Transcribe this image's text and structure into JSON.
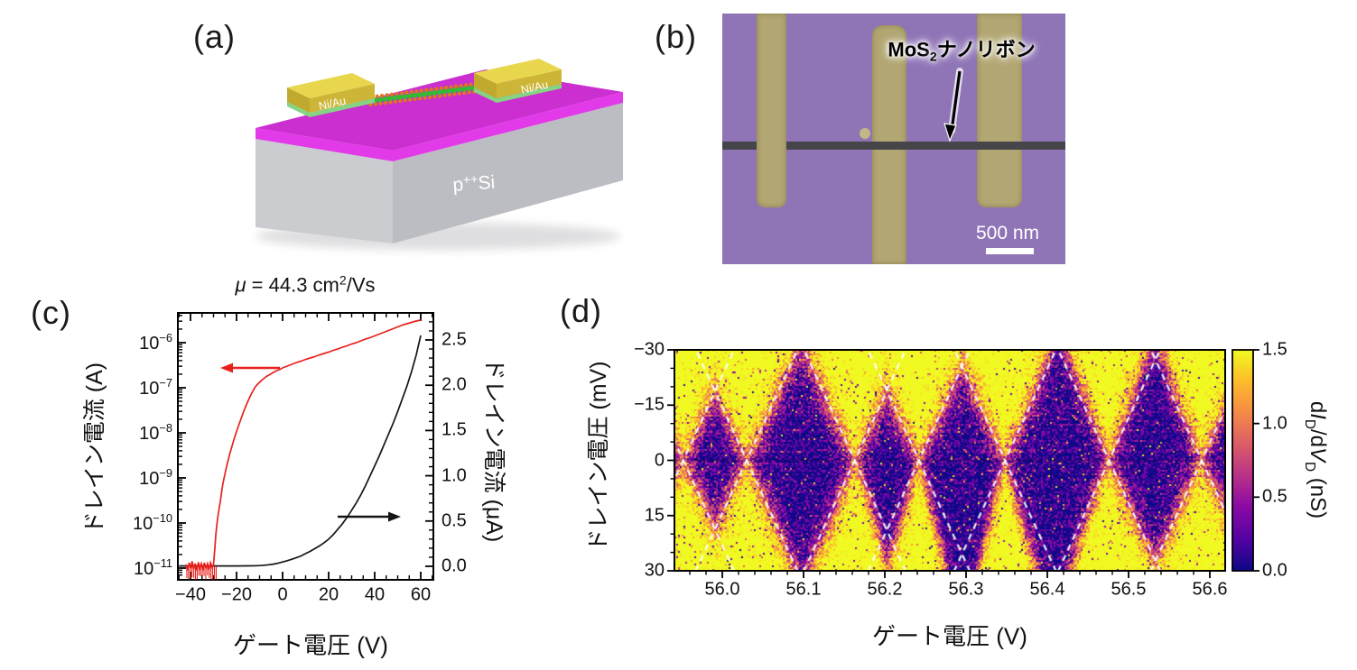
{
  "figure": {
    "background": "#ffffff",
    "panels": {
      "a": {
        "label": "(a)",
        "electrode_label": "Ni/Au",
        "substrate_label_base": "p",
        "substrate_label_sup": "++",
        "substrate_label_end": "Si",
        "colors": {
          "oxide_top": "#cb2fd0",
          "oxide_front": "#e23ae8",
          "substrate_front": "#cbccd0",
          "substrate_side": "#bcbdc2",
          "gold_top": "#e8d74d",
          "gold_front": "#cdb637",
          "gold_side": "#c0a92e",
          "adhesion_green": "#85d383",
          "atom_orange": "#e0761c",
          "atom_green": "#2fbe2f",
          "shadow": "#dedee0",
          "label_text": "#ffffff"
        }
      },
      "b": {
        "label": "(b)",
        "annotation_base": "MoS",
        "annotation_sub": "2",
        "annotation_rest": "ナノリボン",
        "scalebar_label": "500 nm",
        "colors": {
          "background": "#8f74b6",
          "electrode": "#b2a672",
          "particle": "#c3b786",
          "ribbon": "#45454a",
          "scalebar": "#ffffff"
        }
      },
      "c": {
        "label": "(c)"
      },
      "d": {
        "label": "(d)"
      }
    }
  },
  "chart_data": [
    {
      "id": "transfer-curve",
      "type": "line",
      "title_mu": "μ",
      "title_rest": " = 44.3 cm",
      "title_sup": "2",
      "title_end": "/Vs",
      "xlabel": "ゲート電圧 (V)",
      "ylabel_left": "ドレイン電流 (A)",
      "ylabel_right": "ドレイン電流 (μA)",
      "xlim": [
        -45.5,
        65.5
      ],
      "x_ticks": [
        -40,
        -20,
        0,
        20,
        40,
        60
      ],
      "x_tick_labels": [
        "−40",
        "−20",
        "0",
        "20",
        "40",
        "60"
      ],
      "x_minor_step": 5,
      "y_left_scale": "log",
      "y_left_lim_exponents": [
        -11.26,
        -5.34
      ],
      "y_left_tick_exponents": [
        -6,
        -7,
        -8,
        -9,
        -10,
        -11
      ],
      "y_left_tick_exponent_labels": [
        "−6",
        "−7",
        "−8",
        "−9",
        "−10",
        "−11"
      ],
      "y_left_tick_base": "10",
      "y_right_lim": [
        -0.15,
        2.8
      ],
      "y_right_ticks": [
        0.0,
        0.5,
        1.0,
        1.5,
        2.0,
        2.5
      ],
      "y_right_tick_labels": [
        "0.0",
        "0.5",
        "1.0",
        "1.5",
        "2.0",
        "2.5"
      ],
      "y_right_minor_step": 0.1,
      "grid": false,
      "noise_floor": {
        "vg_range": [
          -42,
          -29
        ],
        "exponent": -10.95
      },
      "series": [
        {
          "name": "drain-current-log-A",
          "color": "#e8211d",
          "axis": "left",
          "points": [
            [
              -42,
              -10.92
            ],
            [
              -41.3,
              -11.05
            ],
            [
              -40.6,
              -10.88
            ],
            [
              -40,
              -11.0
            ],
            [
              -39.3,
              -10.85
            ],
            [
              -38.6,
              -11.02
            ],
            [
              -38,
              -10.9
            ],
            [
              -37.3,
              -11.05
            ],
            [
              -36.6,
              -10.87
            ],
            [
              -36,
              -11.0
            ],
            [
              -35.3,
              -10.9
            ],
            [
              -34.6,
              -11.05
            ],
            [
              -34,
              -10.88
            ],
            [
              -33.3,
              -11.0
            ],
            [
              -32.6,
              -10.9
            ],
            [
              -32,
              -11.03
            ],
            [
              -31.3,
              -10.88
            ],
            [
              -30.6,
              -10.98
            ],
            [
              -30,
              -10.92
            ],
            [
              -29.5,
              -10.6
            ],
            [
              -29,
              -10.25
            ],
            [
              -28.5,
              -10.02
            ],
            [
              -28,
              -9.82
            ],
            [
              -27.5,
              -9.65
            ],
            [
              -27,
              -9.5
            ],
            [
              -26.5,
              -9.32
            ],
            [
              -26,
              -9.15
            ],
            [
              -25.5,
              -9.02
            ],
            [
              -25,
              -8.9
            ],
            [
              -24.5,
              -8.79
            ],
            [
              -24,
              -8.68
            ],
            [
              -23,
              -8.48
            ],
            [
              -22,
              -8.3
            ],
            [
              -21,
              -8.13
            ],
            [
              -20,
              -7.97
            ],
            [
              -19,
              -7.82
            ],
            [
              -18,
              -7.68
            ],
            [
              -17,
              -7.54
            ],
            [
              -16,
              -7.41
            ],
            [
              -15,
              -7.29
            ],
            [
              -14,
              -7.18
            ],
            [
              -13,
              -7.08
            ],
            [
              -12,
              -6.99
            ],
            [
              -11,
              -6.93
            ],
            [
              -10,
              -6.88
            ],
            [
              -9,
              -6.83
            ],
            [
              -8,
              -6.79
            ],
            [
              -7,
              -6.75
            ],
            [
              -6,
              -6.72
            ],
            [
              -5,
              -6.69
            ],
            [
              -4,
              -6.66
            ],
            [
              -3,
              -6.63
            ],
            [
              -2,
              -6.61
            ],
            [
              -1,
              -6.59
            ],
            [
              0,
              -6.56
            ],
            [
              2,
              -6.52
            ],
            [
              4,
              -6.48
            ],
            [
              6,
              -6.44
            ],
            [
              8,
              -6.41
            ],
            [
              10,
              -6.37
            ],
            [
              12,
              -6.34
            ],
            [
              14,
              -6.31
            ],
            [
              16,
              -6.27
            ],
            [
              18,
              -6.24
            ],
            [
              20,
              -6.21
            ],
            [
              22,
              -6.17
            ],
            [
              24,
              -6.14
            ],
            [
              26,
              -6.1
            ],
            [
              28,
              -6.07
            ],
            [
              30,
              -6.03
            ],
            [
              32,
              -6.0
            ],
            [
              34,
              -5.96
            ],
            [
              36,
              -5.92
            ],
            [
              38,
              -5.89
            ],
            [
              40,
              -5.85
            ],
            [
              42,
              -5.81
            ],
            [
              44,
              -5.77
            ],
            [
              46,
              -5.73
            ],
            [
              48,
              -5.69
            ],
            [
              50,
              -5.65
            ],
            [
              52,
              -5.61
            ],
            [
              54,
              -5.58
            ],
            [
              56,
              -5.55
            ],
            [
              58,
              -5.52
            ],
            [
              60,
              -5.5
            ]
          ]
        },
        {
          "name": "drain-current-linear-uA",
          "color": "#151515",
          "axis": "right",
          "points": [
            [
              -45,
              0.004
            ],
            [
              -20,
              0.004
            ],
            [
              -15,
              0.005
            ],
            [
              -12,
              0.006
            ],
            [
              -10,
              0.008
            ],
            [
              -8,
              0.012
            ],
            [
              -6,
              0.017
            ],
            [
              -4,
              0.024
            ],
            [
              -2,
              0.034
            ],
            [
              0,
              0.048
            ],
            [
              2,
              0.062
            ],
            [
              4,
              0.078
            ],
            [
              6,
              0.096
            ],
            [
              8,
              0.115
            ],
            [
              10,
              0.14
            ],
            [
              12,
              0.165
            ],
            [
              14,
              0.195
            ],
            [
              16,
              0.225
            ],
            [
              18,
              0.26
            ],
            [
              20,
              0.3
            ],
            [
              22,
              0.35
            ],
            [
              24,
              0.41
            ],
            [
              26,
              0.47
            ],
            [
              28,
              0.54
            ],
            [
              30,
              0.62
            ],
            [
              32,
              0.7
            ],
            [
              34,
              0.79
            ],
            [
              36,
              0.89
            ],
            [
              38,
              1.0
            ],
            [
              40,
              1.11
            ],
            [
              42,
              1.22
            ],
            [
              44,
              1.34
            ],
            [
              46,
              1.46
            ],
            [
              48,
              1.58
            ],
            [
              50,
              1.71
            ],
            [
              52,
              1.85
            ],
            [
              54,
              1.99
            ],
            [
              56,
              2.15
            ],
            [
              58,
              2.33
            ],
            [
              60,
              2.55
            ]
          ]
        }
      ],
      "annotations": [
        {
          "type": "arrow",
          "points_to": "left-axis",
          "direction": "left",
          "color": "#e8211d"
        },
        {
          "type": "arrow",
          "points_to": "right-axis",
          "direction": "right",
          "color": "#151515"
        }
      ]
    },
    {
      "id": "coulomb-diamond-map",
      "type": "heatmap",
      "xlabel": "ゲート電圧 (V)",
      "ylabel": "ドレイン電圧 (mV)",
      "xlim": [
        55.941,
        56.619
      ],
      "x_ticks": [
        56.0,
        56.1,
        56.2,
        56.3,
        56.4,
        56.5,
        56.6
      ],
      "x_tick_labels": [
        "56.0",
        "56.1",
        "56.2",
        "56.3",
        "56.4",
        "56.5",
        "56.6"
      ],
      "x_minor_step": 0.02,
      "ylim_top_to_bottom": [
        -30,
        30
      ],
      "y_ticks": [
        -30,
        -15,
        0,
        15,
        30
      ],
      "y_tick_labels": [
        "−30",
        "−15",
        "0",
        "15",
        "30"
      ],
      "y_minor_step": 5,
      "colorbar": {
        "lim": [
          0.0,
          1.5
        ],
        "ticks": [
          0.0,
          0.5,
          1.0,
          1.5
        ],
        "tick_labels": [
          "0.0",
          "0.5",
          "1.0",
          "1.5"
        ],
        "label_parts": {
          "p1": "d",
          "i1": "I",
          "s1": "D",
          "p2": "/d",
          "i2": "V",
          "s2": "D",
          "p3": " (nS)"
        },
        "colormap": "plasma"
      },
      "diamond_crossings_V": [
        55.952,
        56.03,
        56.163,
        56.242,
        56.348,
        56.476,
        56.59
      ],
      "diamond_edge_slope_mV_per_V": 480,
      "overlay_dash_color": "#ffffff",
      "value_range_nS": [
        0.0,
        1.5
      ]
    }
  ]
}
